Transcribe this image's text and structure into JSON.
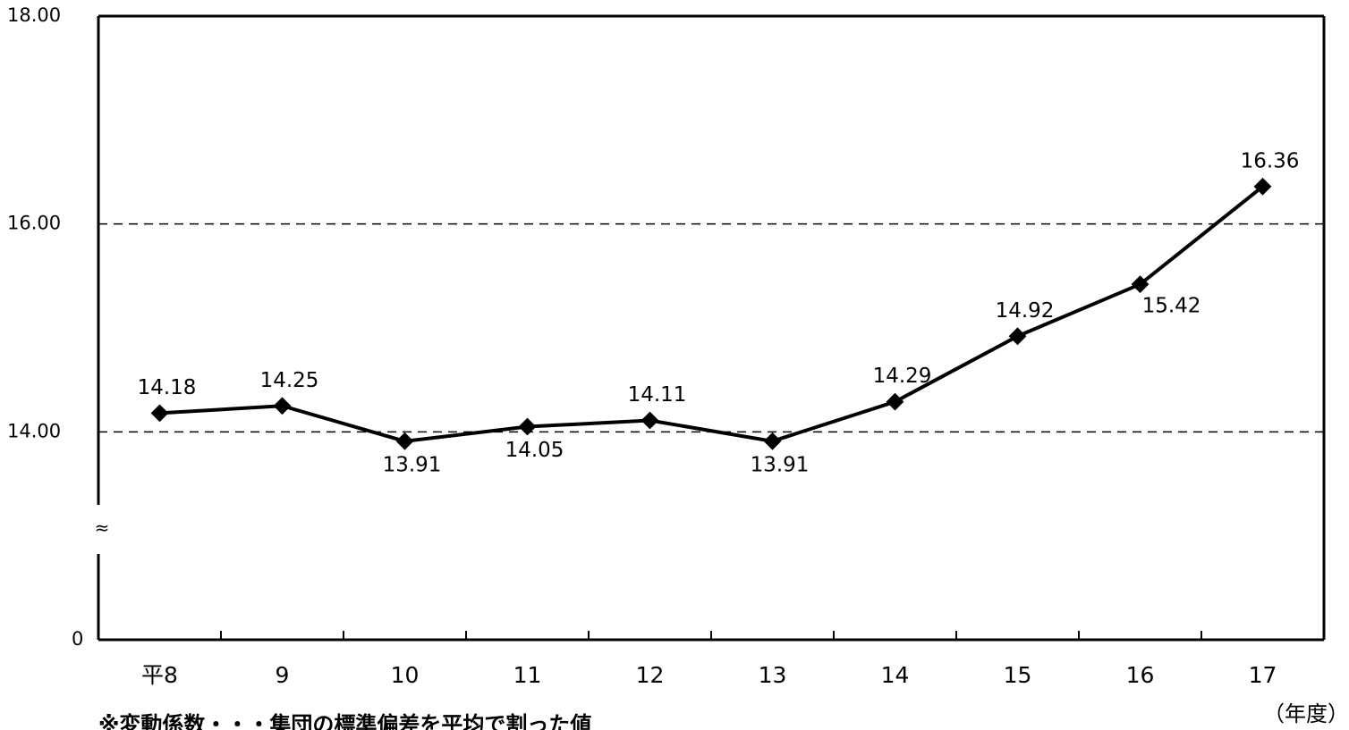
{
  "chart_data": {
    "type": "line",
    "categories": [
      "平8",
      "9",
      "10",
      "11",
      "12",
      "13",
      "14",
      "15",
      "16",
      "17"
    ],
    "series": [
      {
        "color": "#000000",
        "values": [
          14.18,
          14.25,
          13.91,
          14.05,
          14.11,
          13.91,
          14.29,
          14.92,
          15.42,
          16.36
        ]
      }
    ],
    "ylim": [
      0,
      18
    ],
    "yticks": [
      0,
      {
        "value": 14,
        "label": "14.00"
      },
      {
        "value": 16,
        "label": "16.00"
      },
      {
        "value": 18,
        "label": "18.00"
      }
    ],
    "y_break": true,
    "grid": true,
    "xlabel": "（年度）",
    "note": "※変動係数・・・集団の標準偏差を平均で割った値"
  }
}
